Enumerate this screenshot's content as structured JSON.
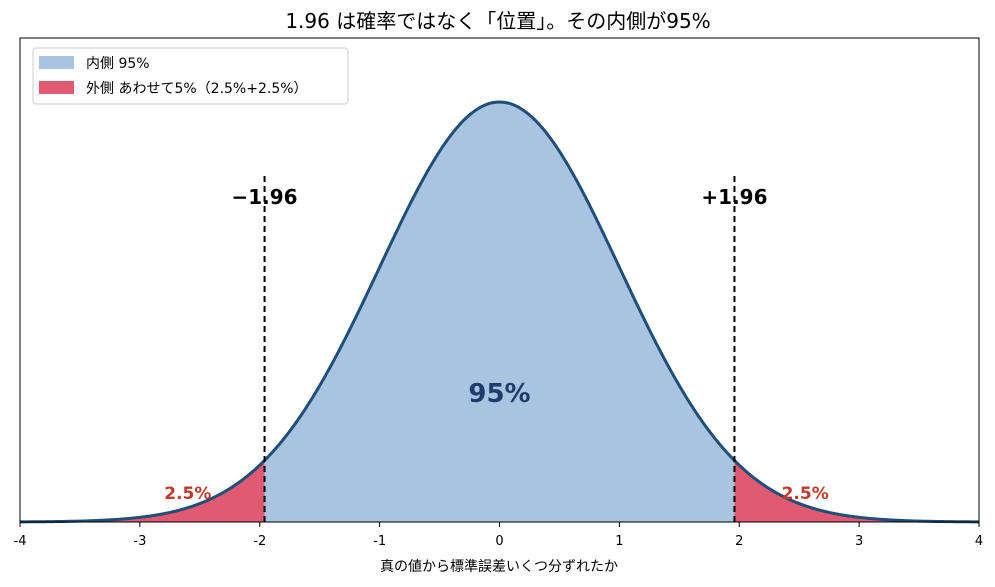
{
  "chart_data": {
    "type": "area",
    "title": "1.96 は確率ではなく「位置」。その内側が95%",
    "xlabel": "真の値から標準誤差いくつ分ずれたか",
    "ylabel": "",
    "xlim": [
      -4,
      4
    ],
    "x_ticks": [
      "-4",
      "-3",
      "-2",
      "-1",
      "0",
      "1",
      "2",
      "3",
      "4"
    ],
    "y_ticks": "none",
    "curve": "standard normal density",
    "critical_values": [
      -1.96,
      1.96
    ],
    "critical_labels": [
      "−1.96",
      "+1.96"
    ],
    "series": [
      {
        "name": "内側 95%",
        "x_range": [
          -1.96,
          1.96
        ],
        "color": "#a8c4e0"
      },
      {
        "name": "外側 あわせて5%（2.5%+2.5%）",
        "x_range": "|x| > 1.96",
        "color": "#e05a72"
      }
    ],
    "annotations": {
      "center": "95%",
      "left_tail": "2.5%",
      "right_tail": "2.5%"
    },
    "legend_position": "top-left",
    "grid": false,
    "colors": {
      "curve": "#1f4e79",
      "inside": "#a8c4e0",
      "outside": "#e05a72",
      "center_text": "#1f3d6b",
      "tail_text": "#c0392b"
    }
  }
}
